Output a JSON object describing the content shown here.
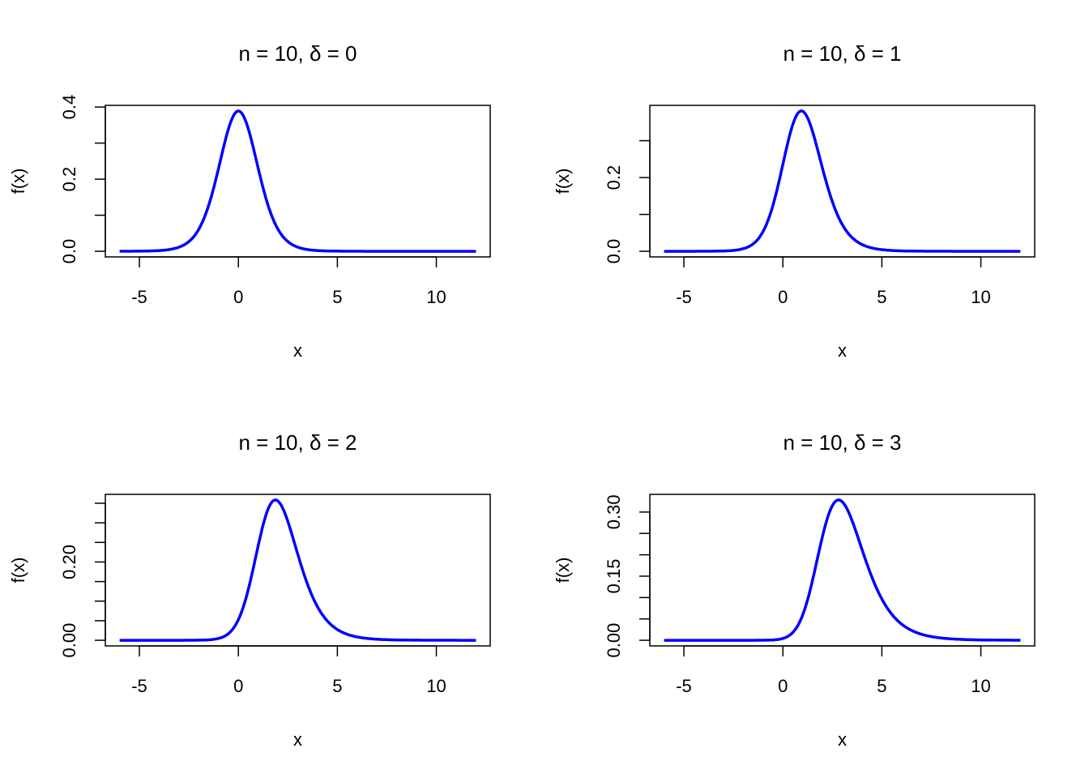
{
  "chart_data": [
    {
      "type": "line",
      "title": "n = 10,  δ = 0",
      "df": 10,
      "ncp": 0,
      "xlabel": "x",
      "ylabel": "f(x)",
      "x_range": [
        -6,
        12
      ],
      "x_ticks": [
        -5,
        0,
        5,
        10
      ],
      "y_ticks": [
        0,
        0.1,
        0.2,
        0.3,
        0.4
      ],
      "y_tick_labels": [
        "0.0",
        "",
        "0.2",
        "",
        "0.4"
      ],
      "color": "#0000ff"
    },
    {
      "type": "line",
      "title": "n = 10,  δ = 1",
      "df": 10,
      "ncp": 1,
      "xlabel": "x",
      "ylabel": "f(x)",
      "x_range": [
        -6,
        12
      ],
      "x_ticks": [
        -5,
        0,
        5,
        10
      ],
      "y_ticks": [
        0,
        0.1,
        0.2,
        0.3
      ],
      "y_tick_labels": [
        "0.0",
        "",
        "0.2",
        ""
      ],
      "color": "#0000ff"
    },
    {
      "type": "line",
      "title": "n = 10,  δ = 2",
      "df": 10,
      "ncp": 2,
      "xlabel": "x",
      "ylabel": "f(x)",
      "x_range": [
        -6,
        12
      ],
      "x_ticks": [
        -5,
        0,
        5,
        10
      ],
      "y_ticks": [
        0,
        0.05,
        0.1,
        0.15,
        0.2,
        0.25,
        0.3,
        0.35
      ],
      "y_tick_labels": [
        "0.00",
        "",
        "",
        "",
        "0.20",
        "",
        "",
        ""
      ],
      "color": "#0000ff"
    },
    {
      "type": "line",
      "title": "n = 10,  δ = 3",
      "df": 10,
      "ncp": 3,
      "xlabel": "x",
      "ylabel": "f(x)",
      "x_range": [
        -6,
        12
      ],
      "x_ticks": [
        -5,
        0,
        5,
        10
      ],
      "y_ticks": [
        0,
        0.05,
        0.1,
        0.15,
        0.2,
        0.25,
        0.3
      ],
      "y_tick_labels": [
        "0.00",
        "",
        "",
        "0.15",
        "",
        "",
        "0.30"
      ],
      "color": "#0000ff"
    }
  ]
}
